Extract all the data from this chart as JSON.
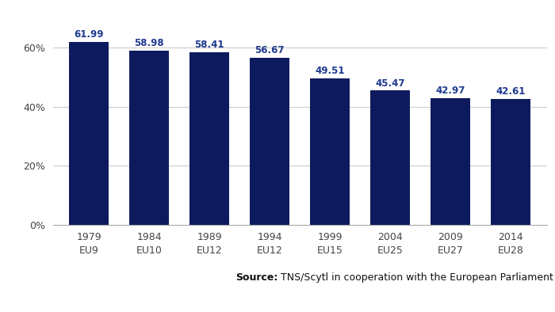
{
  "categories": [
    "1979\nEU9",
    "1984\nEU10",
    "1989\nEU12",
    "1994\nEU12",
    "1999\nEU15",
    "2004\nEU25",
    "2009\nEU27",
    "2014\nEU28"
  ],
  "values": [
    61.99,
    58.98,
    58.41,
    56.67,
    49.51,
    45.47,
    42.97,
    42.61
  ],
  "bar_color": "#0d1b5e",
  "label_color": "#1f3a8f",
  "yticks": [
    0,
    20,
    40,
    60
  ],
  "ytick_labels": [
    "0%",
    "20%",
    "40%",
    "60%"
  ],
  "ylim": [
    0,
    72
  ],
  "source_text_bold": "Source:",
  "source_text_normal": " TNS/Scytl in cooperation with the European Parliament",
  "background_color": "#ffffff",
  "plot_area_color": "#ffffff",
  "footer_color": "#eeeeee",
  "grid_color": "#cccccc",
  "bar_width": 0.65,
  "label_fontsize": 8.5,
  "tick_fontsize": 9.0,
  "source_fontsize": 9.0
}
